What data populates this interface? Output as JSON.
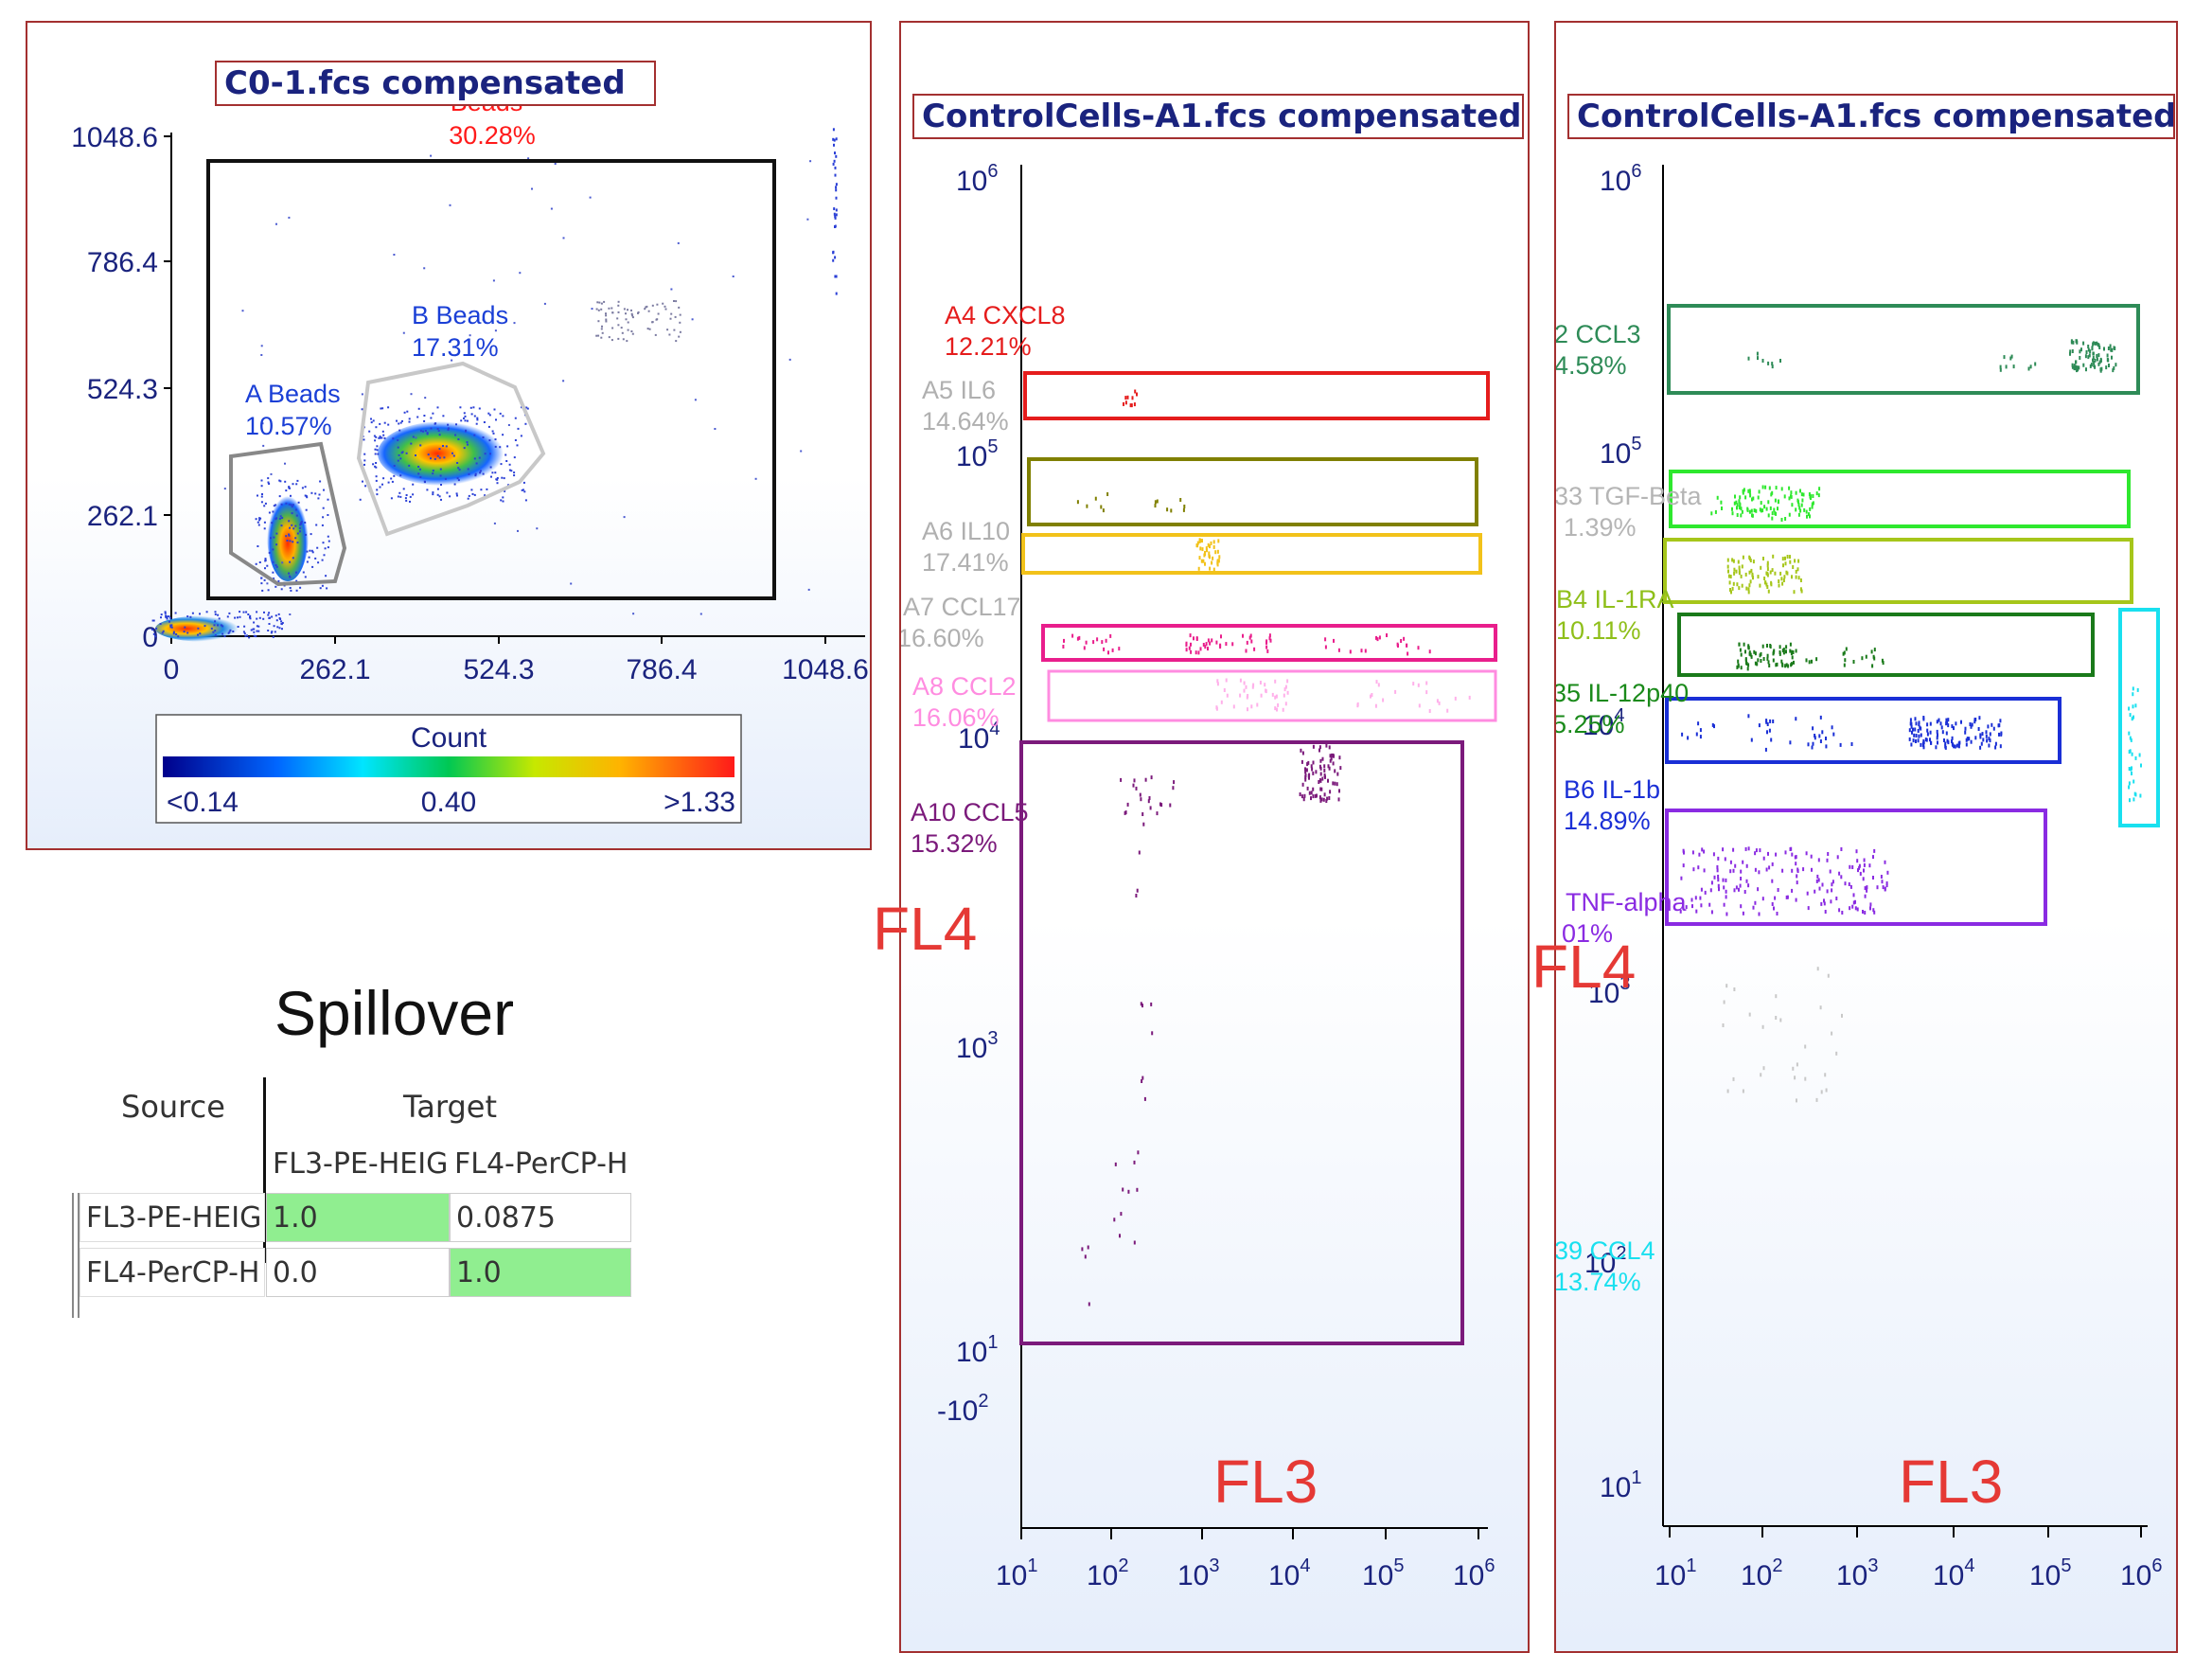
{
  "panel1": {
    "title": "C0-1.fcs compensated",
    "x_ticks": [
      "0",
      "262.1",
      "524.3",
      "786.4",
      "1048.6"
    ],
    "y_ticks": [
      "0",
      "262.1",
      "524.3",
      "786.4",
      "1048.6"
    ],
    "gates": [
      {
        "name": "Beads",
        "pct": "30.28%",
        "color": "#ff1a1a"
      },
      {
        "name": "A Beads",
        "pct": "10.57%",
        "color": "#1a3fd6"
      },
      {
        "name": "B Beads",
        "pct": "17.31%",
        "color": "#1a3fd6"
      }
    ],
    "colorbar": {
      "title": "Count",
      "min": "<0.14",
      "mid": "0.40",
      "max": ">1.33"
    }
  },
  "panel2": {
    "title": "ControlCells-A1.fcs compensated",
    "x_label": "FL3",
    "y_label": "FL4",
    "x_ticks": [
      "10",
      "10",
      "10",
      "10",
      "10",
      "10"
    ],
    "x_exps": [
      "1",
      "2",
      "3",
      "4",
      "5",
      "6"
    ],
    "y_ticks": [
      {
        "base": "10",
        "exp": "6"
      },
      {
        "base": "10",
        "exp": "5"
      },
      {
        "base": "10",
        "exp": "4"
      },
      {
        "base": "10",
        "exp": "3"
      },
      {
        "base": "10",
        "exp": "1"
      },
      {
        "base": "-10",
        "exp": "2"
      }
    ],
    "gates": [
      {
        "name": "A4 CXCL8",
        "pct": "12.21%",
        "color": "#e51c1c"
      },
      {
        "name": "A5 IL6",
        "pct": "14.64%",
        "color": "#b0b0b0"
      },
      {
        "name": "A6 IL10",
        "pct": "17.41%",
        "color": "#b0b0b0"
      },
      {
        "name": "A7 CCL17",
        "pct": "16.60%",
        "color": "#b0b0b0"
      },
      {
        "name": "A8 CCL2",
        "pct": "16.06%",
        "color": "#ff8ce0"
      },
      {
        "name": "A10 CCL5",
        "pct": "15.32%",
        "color": "#7b1a7b"
      }
    ]
  },
  "panel3": {
    "title": "ControlCells-A1.fcs compensated",
    "x_label": "FL3",
    "y_label": "FL4",
    "x_ticks": [
      "10",
      "10",
      "10",
      "10",
      "10",
      "10"
    ],
    "x_exps": [
      "1",
      "2",
      "3",
      "4",
      "5",
      "6"
    ],
    "y_ticks": [
      {
        "base": "10",
        "exp": "6"
      },
      {
        "base": "10",
        "exp": "5"
      },
      {
        "base": "10",
        "exp": "4"
      },
      {
        "base": "10",
        "exp": "3"
      },
      {
        "base": "10",
        "exp": "2"
      },
      {
        "base": "10",
        "exp": "1"
      }
    ],
    "gates": [
      {
        "name": "2 CCL3",
        "pct": "4.58%",
        "color": "#2e8b57"
      },
      {
        "name": "33 TGF-Beta",
        "pct": "1.39%",
        "color": "#b5b5b5"
      },
      {
        "name": "B4 IL-1RA",
        "pct": "10.11%",
        "color": "#8fbf1a"
      },
      {
        "name": "35 IL-12p40",
        "pct": "5.25%",
        "color": "#1a8a1a"
      },
      {
        "name": "B6 IL-1b",
        "pct": "14.89%",
        "color": "#1a2fd6"
      },
      {
        "name": "TNF-alpha",
        "pct": "01%",
        "color": "#8a2be2"
      },
      {
        "name": "39 CCL4",
        "pct": "13.74%",
        "color": "#19e0ef"
      }
    ]
  },
  "spillover": {
    "title": "Spillover",
    "source_header": "Source",
    "target_header": "Target",
    "columns": [
      "FL3-PE-HEIG",
      "FL4-PerCP-H"
    ],
    "rows": [
      {
        "label": "FL3-PE-HEIG",
        "values": [
          "1.0",
          "0.0875"
        ]
      },
      {
        "label": "FL4-PerCP-H",
        "values": [
          "0.0",
          "1.0"
        ]
      }
    ],
    "diag_color": "#90ee90"
  },
  "chart_data": [
    {
      "type": "scatter",
      "title": "C0-1.fcs compensated",
      "xlim": [
        0,
        1048.6
      ],
      "ylim": [
        0,
        1048.6
      ],
      "gates": [
        {
          "name": "Beads",
          "percent": 30.28
        },
        {
          "name": "A Beads",
          "percent": 10.57
        },
        {
          "name": "B Beads",
          "percent": 17.31
        }
      ]
    },
    {
      "type": "scatter",
      "title": "ControlCells-A1.fcs compensated",
      "xlabel": "FL3",
      "ylabel": "FL4",
      "xscale": "log",
      "yscale": "log",
      "gates": [
        {
          "name": "A4 CXCL8",
          "percent": 12.21
        },
        {
          "name": "A5 IL6",
          "percent": 14.64
        },
        {
          "name": "A6 IL10",
          "percent": 17.41
        },
        {
          "name": "A7 CCL17",
          "percent": 16.6
        },
        {
          "name": "A8 CCL2",
          "percent": 16.06
        },
        {
          "name": "A10 CCL5",
          "percent": 15.32
        }
      ]
    },
    {
      "type": "scatter",
      "title": "ControlCells-A1.fcs compensated",
      "xlabel": "FL3",
      "ylabel": "FL4",
      "xscale": "log",
      "yscale": "log",
      "gates": [
        {
          "name": "2 CCL3",
          "percent": 4.58
        },
        {
          "name": "33 TGF-Beta",
          "percent": 1.39
        },
        {
          "name": "B4 IL-1RA",
          "percent": 10.11
        },
        {
          "name": "35 IL-12p40",
          "percent": 5.25
        },
        {
          "name": "B6 IL-1b",
          "percent": 14.89
        },
        {
          "name": "TNF-alpha",
          "percent": 1
        },
        {
          "name": "39 CCL4",
          "percent": 13.74
        }
      ]
    }
  ]
}
